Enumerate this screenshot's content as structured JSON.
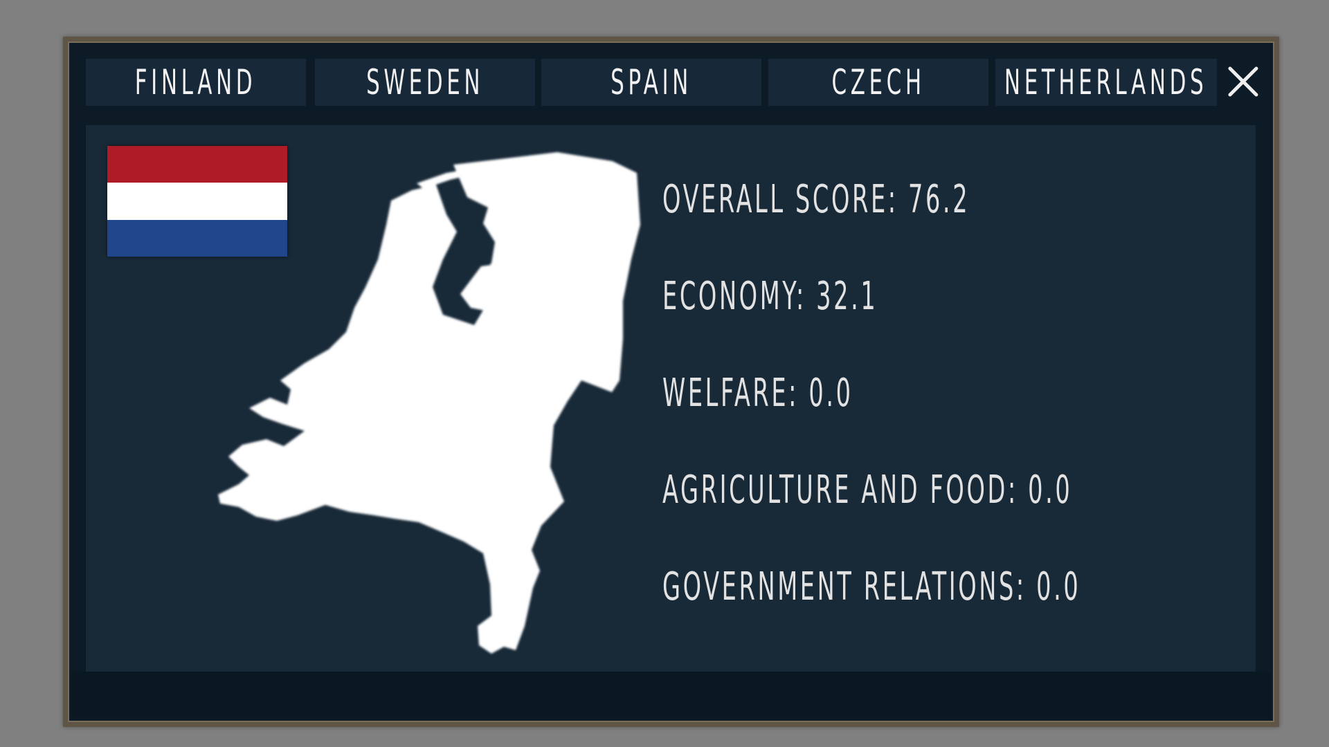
{
  "tabs": [
    {
      "label": "FINLAND"
    },
    {
      "label": "SWEDEN"
    },
    {
      "label": "SPAIN"
    },
    {
      "label": "CZECH"
    },
    {
      "label": "NETHERLANDS",
      "selected": true
    }
  ],
  "close_icon": "close-icon",
  "country": {
    "flag_colors": [
      "#ae1c28",
      "#ffffff",
      "#21468b"
    ],
    "map_icon": "netherlands-map"
  },
  "stats": [
    {
      "text": "OVERALL SCORE: 76.2"
    },
    {
      "text": "ECONOMY: 32.1"
    },
    {
      "text": "WELFARE: 0.0"
    },
    {
      "text": "AGRICULTURE AND FOOD: 0.0"
    },
    {
      "text": "GOVERNMENT RELATIONS: 0.0"
    }
  ],
  "colors": {
    "frame": "#0c1b26",
    "panel": "#182938",
    "tab": "#172838",
    "text": "#e2e2e2"
  }
}
